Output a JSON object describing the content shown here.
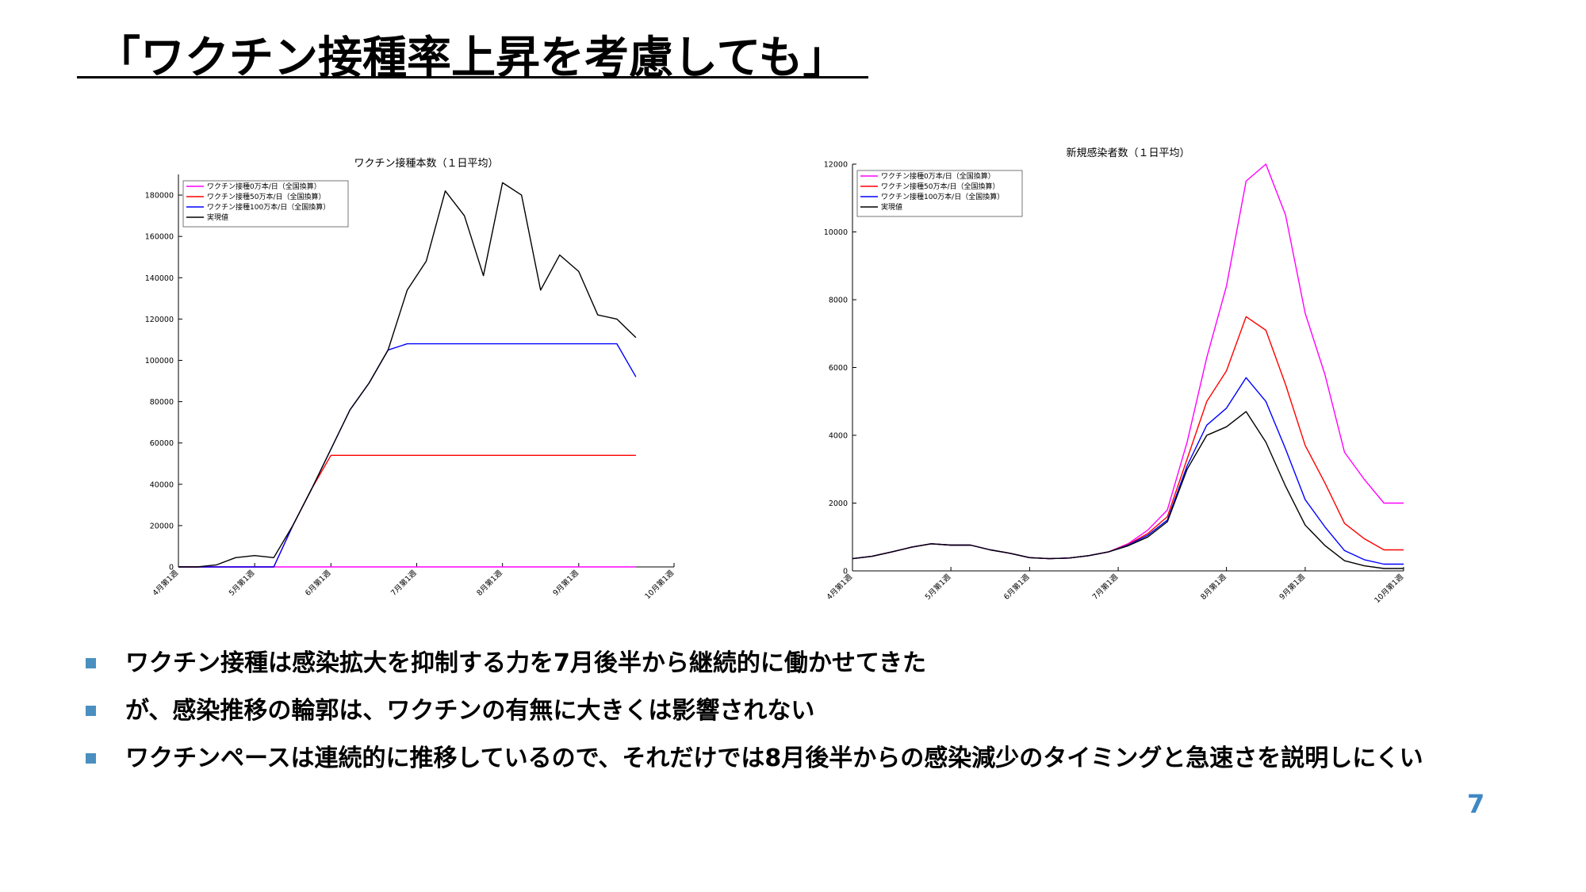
{
  "slide": {
    "title": "「ワクチン接種率上昇を考慮しても」",
    "page_number": "7",
    "bullets": [
      "ワクチン接種は感染拡大を抑制する力を7月後半から継続的に働かせてきた",
      "が、感染推移の輪郭は、ワクチンの有無に大きくは影響されない",
      "ワクチンペースは連続的に推移しているので、それだけでは8月後半からの感染減少のタイミングと急速さを説明しにくい"
    ],
    "bullet_color": "#4a8fbf",
    "page_number_color": "#3f88c5"
  },
  "chart_data": [
    {
      "type": "line",
      "title": "ワクチン接種本数（１日平均）",
      "xlabel": "",
      "ylabel": "",
      "ylim": [
        0,
        190000
      ],
      "xlim": [
        0,
        26
      ],
      "xticks": [
        {
          "pos": 0,
          "label": "4月第1週"
        },
        {
          "pos": 4,
          "label": "5月第1週"
        },
        {
          "pos": 8,
          "label": "6月第1週"
        },
        {
          "pos": 12.5,
          "label": "7月第1週"
        },
        {
          "pos": 17,
          "label": "8月第1週"
        },
        {
          "pos": 21,
          "label": "9月第1週"
        },
        {
          "pos": 26,
          "label": "10月第1週"
        }
      ],
      "yticks": [
        0,
        20000,
        40000,
        60000,
        80000,
        100000,
        120000,
        140000,
        160000,
        180000
      ],
      "legend_position": "top-left",
      "series": [
        {
          "name": "ワクチン接種0万本/日（全国換算）",
          "color": "#ff00ff",
          "x": [
            0,
            24
          ],
          "y": [
            0,
            0
          ]
        },
        {
          "name": "ワクチン接種50万本/日（全国換算）",
          "color": "#ff0000",
          "x": [
            0,
            1,
            2,
            3,
            4,
            5,
            6,
            7,
            8,
            24
          ],
          "y": [
            0,
            0,
            0,
            0,
            0,
            0,
            20000,
            38000,
            54000,
            54000
          ]
        },
        {
          "name": "ワクチン接種100万本/日（全国換算）",
          "color": "#0000ff",
          "x": [
            0,
            1,
            2,
            3,
            4,
            5,
            6,
            7,
            8,
            9,
            10,
            11,
            12,
            13,
            23,
            24
          ],
          "y": [
            0,
            0,
            0,
            0,
            0,
            0,
            20000,
            38000,
            57000,
            76000,
            89000,
            105000,
            108000,
            108000,
            108000,
            92000
          ]
        },
        {
          "name": "実現値",
          "color": "#000000",
          "x": [
            0,
            1,
            2,
            3,
            4,
            5,
            6,
            7,
            8,
            9,
            10,
            11,
            12,
            13,
            14,
            15,
            16,
            17,
            18,
            19,
            20,
            21,
            22,
            23,
            24
          ],
          "y": [
            0,
            0,
            1000,
            4500,
            5500,
            4500,
            20000,
            38000,
            57000,
            76000,
            89000,
            105000,
            134000,
            148000,
            182000,
            170000,
            141000,
            186000,
            180000,
            134000,
            151000,
            143000,
            122000,
            120000,
            111000
          ]
        }
      ]
    },
    {
      "type": "line",
      "title": "新規感染者数（１日平均）",
      "xlabel": "",
      "ylabel": "",
      "ylim": [
        0,
        12000
      ],
      "xlim": [
        0,
        28
      ],
      "xticks": [
        {
          "pos": 0,
          "label": "4月第1週"
        },
        {
          "pos": 5,
          "label": "5月第1週"
        },
        {
          "pos": 9,
          "label": "6月第1週"
        },
        {
          "pos": 13.5,
          "label": "7月第1週"
        },
        {
          "pos": 19,
          "label": "8月第1週"
        },
        {
          "pos": 23,
          "label": "9月第1週"
        },
        {
          "pos": 28,
          "label": "10月第1週"
        }
      ],
      "yticks": [
        0,
        2000,
        4000,
        6000,
        8000,
        10000,
        12000
      ],
      "legend_position": "top-left",
      "series": [
        {
          "name": "ワクチン接種0万本/日（全国換算）",
          "color": "#ff00ff",
          "x": [
            0,
            1,
            2,
            3,
            4,
            5,
            6,
            7,
            8,
            9,
            10,
            11,
            12,
            13,
            14,
            15,
            16,
            17,
            18,
            19,
            20,
            21,
            22,
            23,
            24,
            25,
            26,
            27,
            28
          ],
          "y": [
            360,
            430,
            560,
            700,
            800,
            760,
            760,
            620,
            520,
            390,
            360,
            380,
            450,
            560,
            800,
            1200,
            1800,
            3800,
            6300,
            8400,
            11500,
            12000,
            10500,
            7600,
            5800,
            3500,
            2700,
            2000,
            2000
          ]
        },
        {
          "name": "ワクチン接種50万本/日（全国換算）",
          "color": "#ff0000",
          "x": [
            0,
            1,
            2,
            3,
            4,
            5,
            6,
            7,
            8,
            9,
            10,
            11,
            12,
            13,
            14,
            15,
            16,
            17,
            18,
            19,
            20,
            21,
            22,
            23,
            24,
            25,
            26,
            27,
            28
          ],
          "y": [
            360,
            430,
            560,
            700,
            800,
            760,
            760,
            620,
            520,
            390,
            360,
            380,
            450,
            560,
            780,
            1100,
            1600,
            3300,
            5000,
            5900,
            7500,
            7100,
            5500,
            3700,
            2600,
            1400,
            950,
            620,
            620
          ]
        },
        {
          "name": "ワクチン接種100万本/日（全国換算）",
          "color": "#0000ff",
          "x": [
            0,
            1,
            2,
            3,
            4,
            5,
            6,
            7,
            8,
            9,
            10,
            11,
            12,
            13,
            14,
            15,
            16,
            17,
            18,
            19,
            20,
            21,
            22,
            23,
            24,
            25,
            26,
            27,
            28
          ],
          "y": [
            360,
            430,
            560,
            700,
            800,
            760,
            760,
            620,
            520,
            390,
            360,
            380,
            450,
            560,
            760,
            1050,
            1500,
            3100,
            4300,
            4800,
            5700,
            5000,
            3600,
            2100,
            1300,
            600,
            330,
            200,
            200
          ]
        },
        {
          "name": "実現値",
          "color": "#000000",
          "x": [
            0,
            1,
            2,
            3,
            4,
            5,
            6,
            7,
            8,
            9,
            10,
            11,
            12,
            13,
            14,
            15,
            16,
            17,
            18,
            19,
            20,
            21,
            22,
            23,
            24,
            25,
            26,
            27,
            28
          ],
          "y": [
            360,
            430,
            560,
            700,
            800,
            760,
            760,
            620,
            520,
            390,
            360,
            380,
            450,
            560,
            740,
            1000,
            1450,
            3000,
            4000,
            4250,
            4700,
            3800,
            2500,
            1350,
            750,
            300,
            150,
            70,
            70
          ]
        }
      ]
    }
  ]
}
